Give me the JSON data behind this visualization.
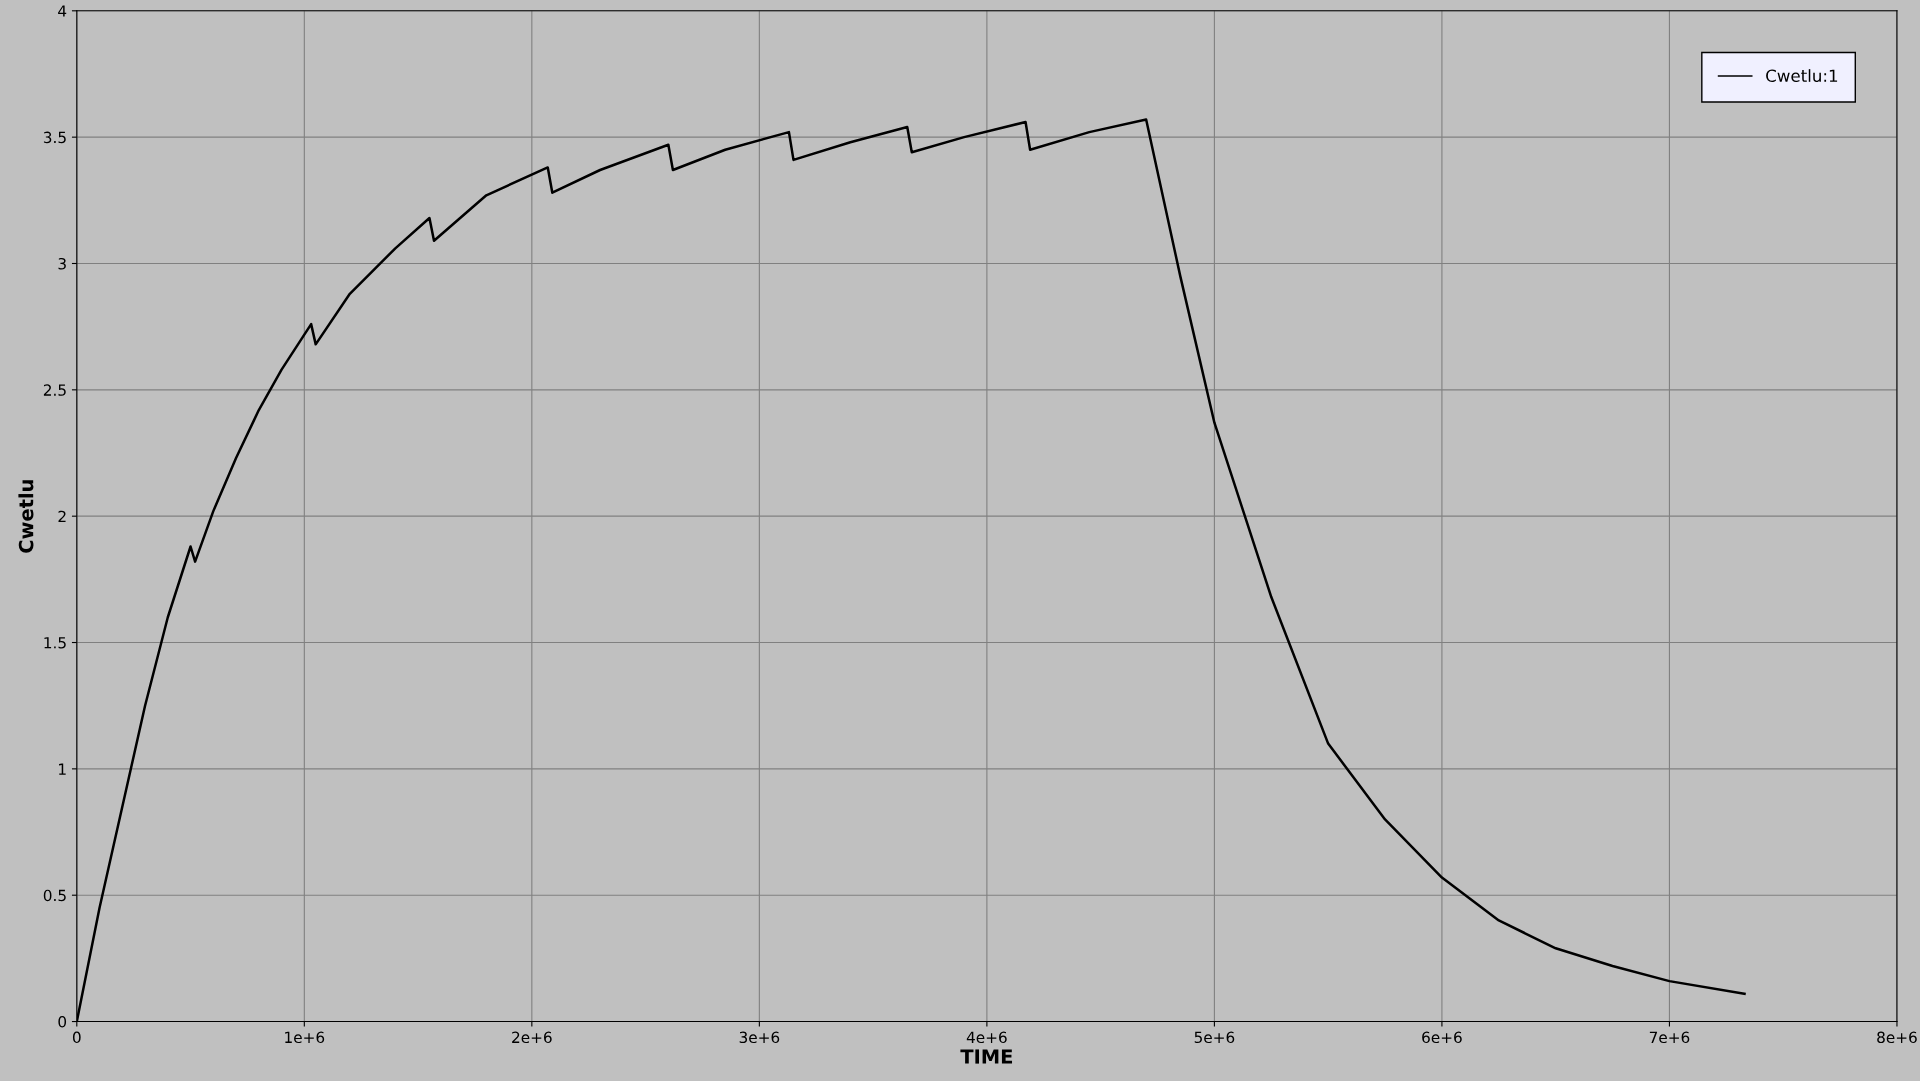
{
  "chart_data": {
    "type": "line",
    "xlabel": "TIME",
    "ylabel": "Cwetlu",
    "xlim": [
      0,
      8000000
    ],
    "ylim": [
      0,
      4
    ],
    "xticks": [
      0,
      {
        "value": 1000000,
        "label": "1e+6"
      },
      {
        "value": 2000000,
        "label": "2e+6"
      },
      {
        "value": 3000000,
        "label": "3e+6"
      },
      {
        "value": 4000000,
        "label": "4e+6"
      },
      {
        "value": 5000000,
        "label": "5e+6"
      },
      {
        "value": 6000000,
        "label": "6e+6"
      },
      {
        "value": 7000000,
        "label": "7e+6"
      },
      {
        "value": 8000000,
        "label": "8e+6"
      }
    ],
    "yticks": [
      0,
      0.5,
      1,
      1.5,
      2,
      2.5,
      3,
      3.5,
      4
    ],
    "grid": true,
    "legend": "top right",
    "marker": "none",
    "line_style": "solid",
    "series": [
      {
        "name": "Cwetlu:1",
        "color": "#000000",
        "x": [
          0,
          100000,
          200000,
          300000,
          400000,
          500000,
          520000,
          600000,
          700000,
          800000,
          900000,
          1030000,
          1050000,
          1200000,
          1400000,
          1550000,
          1570000,
          1800000,
          2070000,
          2090000,
          2300000,
          2600000,
          2620000,
          2850000,
          3130000,
          3150000,
          3400000,
          3650000,
          3670000,
          3900000,
          4170000,
          4190000,
          4450000,
          4700000,
          4850000,
          5000000,
          5250000,
          5500000,
          5750000,
          6000000,
          6250000,
          6500000,
          6750000,
          7000000,
          7330000
        ],
        "values": [
          0,
          0.45,
          0.85,
          1.25,
          1.6,
          1.88,
          1.82,
          2.02,
          2.23,
          2.42,
          2.58,
          2.76,
          2.68,
          2.88,
          3.06,
          3.18,
          3.09,
          3.27,
          3.38,
          3.28,
          3.37,
          3.47,
          3.37,
          3.45,
          3.52,
          3.41,
          3.48,
          3.54,
          3.44,
          3.5,
          3.56,
          3.45,
          3.52,
          3.57,
          2.95,
          2.37,
          1.68,
          1.1,
          0.8,
          0.57,
          0.4,
          0.29,
          0.22,
          0.16,
          0.11
        ]
      }
    ]
  }
}
